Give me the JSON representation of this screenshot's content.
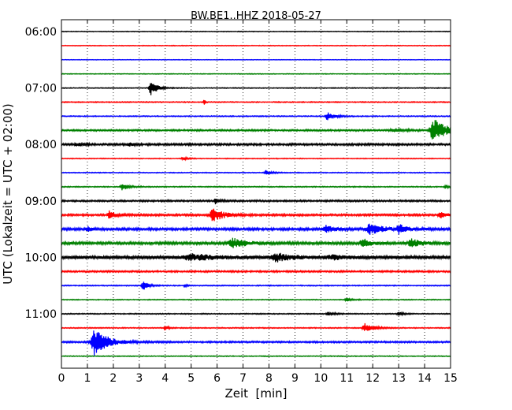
{
  "chart_data": {
    "type": "line",
    "title": "BW.BE1..HHZ 2018-05-27",
    "xlabel": "Zeit  [min]",
    "ylabel": "UTC (Lokalzeit = UTC + 02:00)",
    "xlim": [
      0,
      15
    ],
    "x_ticks": [
      0,
      1,
      2,
      3,
      4,
      5,
      6,
      7,
      8,
      9,
      10,
      11,
      12,
      13,
      14,
      15
    ],
    "x_tick_labels": [
      "0",
      "1",
      "2",
      "3",
      "4",
      "5",
      "6",
      "7",
      "8",
      "9",
      "10",
      "11",
      "12",
      "13",
      "14",
      "15"
    ],
    "row_interval_minutes": 15,
    "y_ticks": [
      {
        "label": "06:00",
        "row": 0
      },
      {
        "label": "07:00",
        "row": 4
      },
      {
        "label": "08:00",
        "row": 8
      },
      {
        "label": "09:00",
        "row": 12
      },
      {
        "label": "10:00",
        "row": 16
      },
      {
        "label": "11:00",
        "row": 20
      }
    ],
    "grid": "vertical dotted at each minute",
    "color_cycle": [
      "#000000",
      "#ff0000",
      "#0000ff",
      "#008000"
    ],
    "traces": [
      {
        "start": "06:00",
        "color": "#000000",
        "noise": 0.4,
        "events": []
      },
      {
        "start": "06:15",
        "color": "#ff0000",
        "noise": 0.4,
        "events": []
      },
      {
        "start": "06:30",
        "color": "#0000ff",
        "noise": 0.3,
        "events": []
      },
      {
        "start": "06:45",
        "color": "#008000",
        "noise": 0.4,
        "events": []
      },
      {
        "start": "07:00",
        "color": "#000000",
        "noise": 0.5,
        "events": [
          {
            "t": 3.45,
            "amp": 9,
            "dur": 0.45
          }
        ]
      },
      {
        "start": "07:15",
        "color": "#ff0000",
        "noise": 0.6,
        "events": [
          {
            "t": 5.5,
            "amp": 4,
            "dur": 0.06
          }
        ]
      },
      {
        "start": "07:30",
        "color": "#0000ff",
        "noise": 0.6,
        "events": [
          {
            "t": 10.25,
            "amp": 5,
            "dur": 0.5
          }
        ]
      },
      {
        "start": "07:45",
        "color": "#008000",
        "noise": 1.0,
        "events": [
          {
            "t": 14.35,
            "amp": 15,
            "dur": 0.9
          },
          {
            "t": 12.8,
            "amp": 2,
            "dur": 0.8
          }
        ]
      },
      {
        "start": "08:00",
        "color": "#000000",
        "noise": 1.2,
        "events": [
          {
            "t": 0.6,
            "amp": 2,
            "dur": 0.5
          },
          {
            "t": 2.6,
            "amp": 2,
            "dur": 0.3
          }
        ]
      },
      {
        "start": "08:15",
        "color": "#ff0000",
        "noise": 0.5,
        "events": [
          {
            "t": 4.7,
            "amp": 2,
            "dur": 0.4
          }
        ]
      },
      {
        "start": "08:30",
        "color": "#0000ff",
        "noise": 0.5,
        "events": [
          {
            "t": 7.9,
            "amp": 3,
            "dur": 0.4
          }
        ]
      },
      {
        "start": "08:45",
        "color": "#008000",
        "noise": 0.6,
        "events": [
          {
            "t": 2.35,
            "amp": 4,
            "dur": 0.5
          },
          {
            "t": 14.8,
            "amp": 2,
            "dur": 0.3
          }
        ]
      },
      {
        "start": "09:00",
        "color": "#000000",
        "noise": 1.0,
        "events": [
          {
            "t": 5.95,
            "amp": 4,
            "dur": 0.3
          }
        ]
      },
      {
        "start": "09:15",
        "color": "#ff0000",
        "noise": 1.2,
        "events": [
          {
            "t": 1.85,
            "amp": 5,
            "dur": 0.45
          },
          {
            "t": 5.85,
            "amp": 8,
            "dur": 0.8
          },
          {
            "t": 14.6,
            "amp": 4,
            "dur": 0.4
          }
        ]
      },
      {
        "start": "09:30",
        "color": "#0000ff",
        "noise": 1.5,
        "events": [
          {
            "t": 1.0,
            "amp": 3,
            "dur": 0.3
          },
          {
            "t": 10.2,
            "amp": 4,
            "dur": 0.6
          },
          {
            "t": 11.9,
            "amp": 6,
            "dur": 1.0
          },
          {
            "t": 13.0,
            "amp": 5,
            "dur": 0.6
          }
        ]
      },
      {
        "start": "09:45",
        "color": "#008000",
        "noise": 1.6,
        "events": [
          {
            "t": 6.6,
            "amp": 6,
            "dur": 0.9
          },
          {
            "t": 11.6,
            "amp": 6,
            "dur": 0.5
          },
          {
            "t": 13.5,
            "amp": 5,
            "dur": 0.8
          }
        ]
      },
      {
        "start": "10:00",
        "color": "#000000",
        "noise": 2.0,
        "events": [
          {
            "t": 5.0,
            "amp": 4,
            "dur": 1.6
          },
          {
            "t": 8.3,
            "amp": 5,
            "dur": 1.0
          },
          {
            "t": 10.4,
            "amp": 3,
            "dur": 0.8
          }
        ]
      },
      {
        "start": "10:15",
        "color": "#ff0000",
        "noise": 1.0,
        "events": []
      },
      {
        "start": "10:30",
        "color": "#0000ff",
        "noise": 0.6,
        "events": [
          {
            "t": 3.15,
            "amp": 6,
            "dur": 0.35
          },
          {
            "t": 4.75,
            "amp": 3,
            "dur": 0.1
          }
        ]
      },
      {
        "start": "10:45",
        "color": "#008000",
        "noise": 0.5,
        "events": [
          {
            "t": 11.0,
            "amp": 2,
            "dur": 0.4
          }
        ]
      },
      {
        "start": "11:00",
        "color": "#000000",
        "noise": 0.6,
        "events": [
          {
            "t": 10.3,
            "amp": 2,
            "dur": 0.5
          },
          {
            "t": 13.0,
            "amp": 2,
            "dur": 0.4
          }
        ]
      },
      {
        "start": "11:15",
        "color": "#ff0000",
        "noise": 0.6,
        "events": [
          {
            "t": 4.0,
            "amp": 3,
            "dur": 0.2
          },
          {
            "t": 11.7,
            "amp": 6,
            "dur": 0.6
          }
        ]
      },
      {
        "start": "11:30",
        "color": "#0000ff",
        "noise": 1.0,
        "events": [
          {
            "t": 1.3,
            "amp": 18,
            "dur": 0.9
          }
        ]
      },
      {
        "start": "11:45",
        "color": "#008000",
        "noise": 0.5,
        "events": []
      }
    ]
  }
}
